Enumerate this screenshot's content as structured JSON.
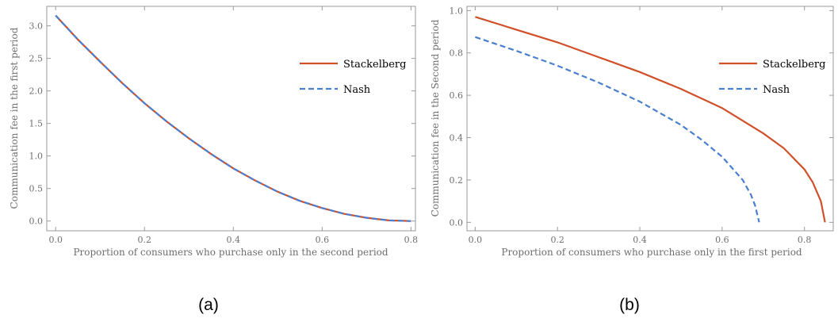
{
  "colors": {
    "stackelberg": "#d0502a",
    "nash": "#4a7fd0",
    "frame": "#9a9a9a"
  },
  "chart_data": [
    {
      "type": "line",
      "panel_label": "(a)",
      "xlabel": "Proportion of consumers who purchase only in the second period",
      "ylabel": "Communication fee in the first period",
      "xlim": [
        -0.02,
        0.81
      ],
      "ylim": [
        -0.15,
        3.3
      ],
      "xticks": [
        0.0,
        0.2,
        0.4,
        0.6,
        0.8
      ],
      "xtick_labels": [
        "0.0",
        "0.2",
        "0.4",
        "0.6",
        "0.8"
      ],
      "yticks": [
        0.0,
        0.5,
        1.0,
        1.5,
        2.0,
        2.5,
        3.0
      ],
      "ytick_labels": [
        "0.0",
        "0.5",
        "1.0",
        "1.5",
        "2.0",
        "2.5",
        "3.0"
      ],
      "legend": "right",
      "grid": false,
      "series": [
        {
          "name": "Stackelberg",
          "style": "solid",
          "x": [
            0.0,
            0.05,
            0.1,
            0.15,
            0.2,
            0.25,
            0.3,
            0.35,
            0.4,
            0.45,
            0.5,
            0.55,
            0.6,
            0.65,
            0.7,
            0.75,
            0.8
          ],
          "y": [
            3.16,
            2.79,
            2.45,
            2.12,
            1.81,
            1.53,
            1.27,
            1.03,
            0.81,
            0.62,
            0.45,
            0.31,
            0.2,
            0.11,
            0.05,
            0.01,
            0.0
          ]
        },
        {
          "name": "Nash",
          "style": "dashed",
          "x": [
            0.0,
            0.05,
            0.1,
            0.15,
            0.2,
            0.25,
            0.3,
            0.35,
            0.4,
            0.45,
            0.5,
            0.55,
            0.6,
            0.65,
            0.7,
            0.75,
            0.8
          ],
          "y": [
            3.16,
            2.79,
            2.45,
            2.12,
            1.81,
            1.53,
            1.27,
            1.03,
            0.81,
            0.62,
            0.45,
            0.31,
            0.2,
            0.11,
            0.05,
            0.01,
            0.0
          ]
        }
      ]
    },
    {
      "type": "line",
      "panel_label": "(b)",
      "xlabel": "Proportion of consumers who purchase only in the first period",
      "ylabel": "Communication fee in the Second period",
      "xlim": [
        -0.02,
        0.87
      ],
      "ylim": [
        -0.04,
        1.02
      ],
      "xticks": [
        0.0,
        0.2,
        0.4,
        0.6,
        0.8
      ],
      "xtick_labels": [
        "0.0",
        "0.2",
        "0.4",
        "0.6",
        "0.8"
      ],
      "yticks": [
        0.0,
        0.2,
        0.4,
        0.6,
        0.8,
        1.0
      ],
      "ytick_labels": [
        "0.0",
        "0.2",
        "0.4",
        "0.6",
        "0.8",
        "1.0"
      ],
      "legend": "right",
      "grid": false,
      "series": [
        {
          "name": "Stackelberg",
          "style": "solid",
          "x": [
            0.0,
            0.1,
            0.2,
            0.3,
            0.4,
            0.5,
            0.6,
            0.7,
            0.75,
            0.8,
            0.82,
            0.84,
            0.85
          ],
          "y": [
            0.97,
            0.91,
            0.85,
            0.78,
            0.71,
            0.63,
            0.54,
            0.42,
            0.35,
            0.25,
            0.19,
            0.1,
            0.0
          ]
        },
        {
          "name": "Nash",
          "style": "dashed",
          "x": [
            0.0,
            0.1,
            0.2,
            0.3,
            0.4,
            0.5,
            0.55,
            0.6,
            0.65,
            0.67,
            0.68,
            0.69
          ],
          "y": [
            0.875,
            0.81,
            0.74,
            0.66,
            0.57,
            0.46,
            0.39,
            0.31,
            0.2,
            0.13,
            0.08,
            0.0
          ]
        }
      ]
    }
  ]
}
